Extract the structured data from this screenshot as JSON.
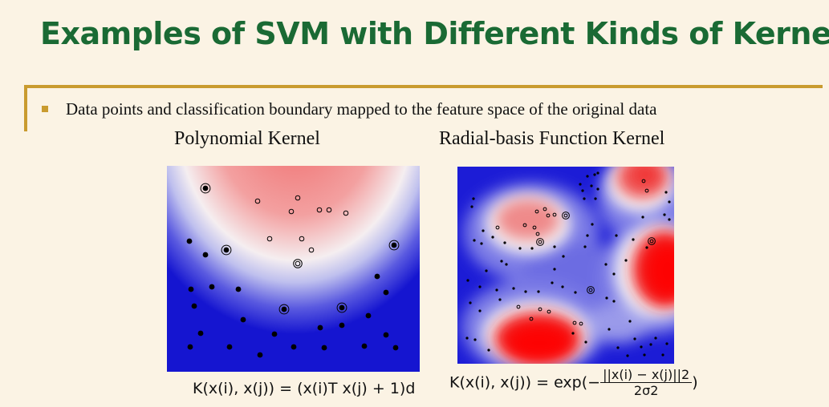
{
  "slide": {
    "title": "Examples of SVM with Different Kinds of Kernels",
    "bullet": "Data points and classification boundary mapped to the feature space of the original data"
  },
  "panels": {
    "left": {
      "subtitle": "Polynomial Kernel",
      "formula": {
        "lhs": "K(x(i), x(j))",
        "eq": "=",
        "rhs": "(x(i)T x(j) + 1)d"
      }
    },
    "right": {
      "subtitle": "Radial-basis Function Kernel",
      "formula": {
        "lhs": "K(x(i), x(j))",
        "eq": "=",
        "rhs_pre": "exp(−",
        "num": "||x(i) − x(j)||2",
        "den": "2σ2",
        "rhs_post": ")"
      }
    }
  },
  "colors": {
    "title": "#1a6a34",
    "accent": "#c99b2f",
    "background": "#fbf3e4",
    "class_positive": "#ff0000",
    "class_negative": "#0000cc"
  }
}
